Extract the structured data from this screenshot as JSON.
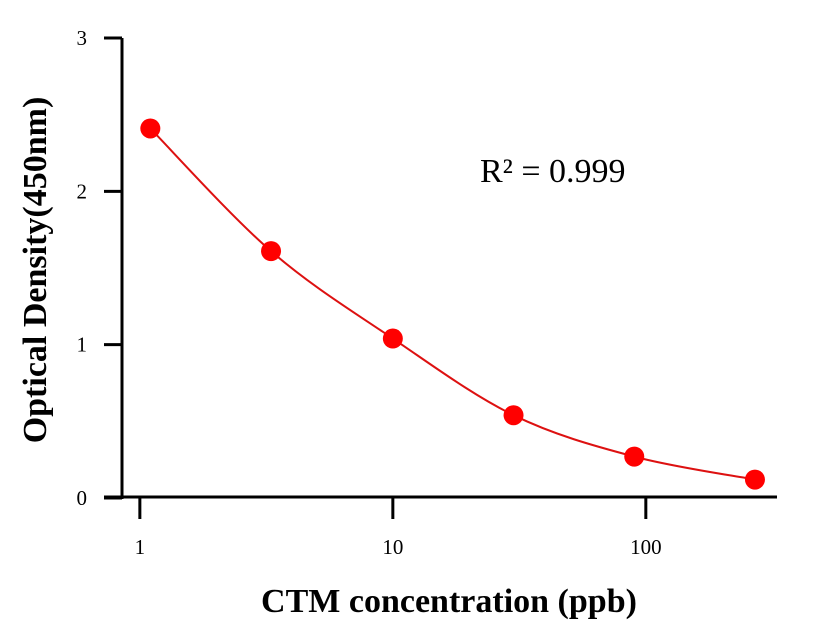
{
  "chart_data": {
    "type": "scatter",
    "xlabel": "CTM concentration (ppb)",
    "ylabel": "Optical Density(450nm)",
    "x_scale": "log",
    "xlim": [
      0.85,
      330
    ],
    "ylim": [
      0,
      3
    ],
    "x_ticks": [
      1,
      10,
      100
    ],
    "x_tick_labels": [
      "1",
      "10",
      "100"
    ],
    "y_ticks": [
      0,
      1,
      2,
      3
    ],
    "y_tick_labels": [
      "0",
      "1",
      "2",
      "3"
    ],
    "grid": false,
    "annotation": "R² = 0.999",
    "series": [
      {
        "x": [
          1.1,
          3.3,
          10,
          30,
          90,
          270
        ],
        "y": [
          2.41,
          1.61,
          1.04,
          0.54,
          0.27,
          0.12
        ],
        "color": "#ff0000",
        "fit_line_color": "#dd1111"
      }
    ]
  }
}
